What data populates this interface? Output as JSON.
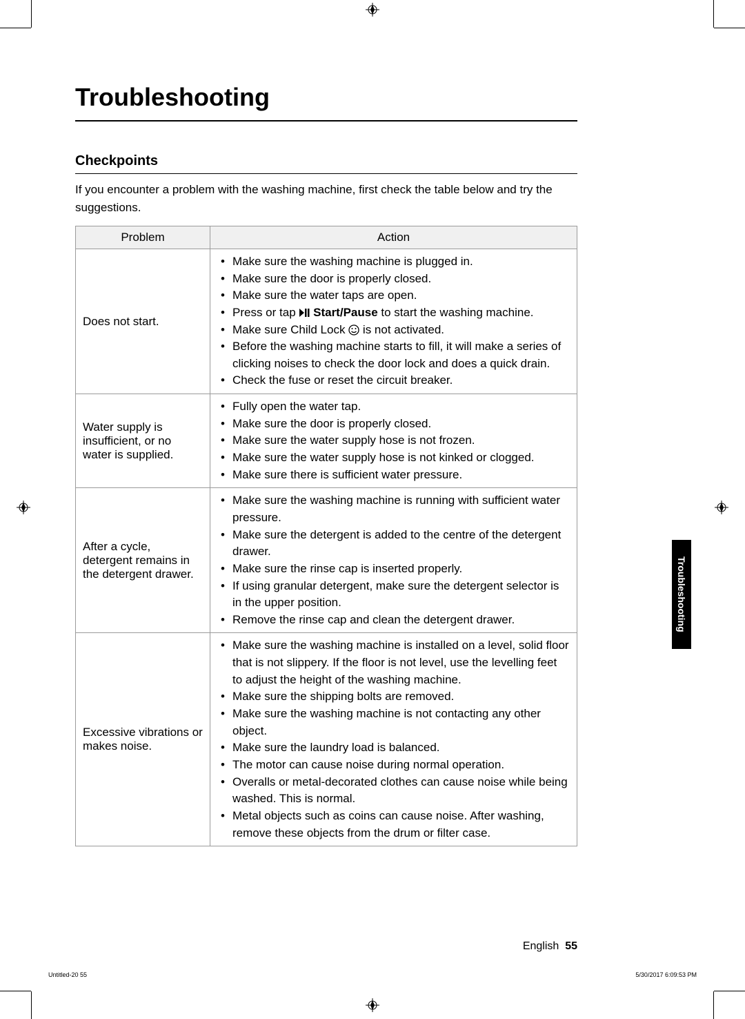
{
  "page": {
    "title": "Troubleshooting",
    "subtitle": "Checkpoints",
    "intro": "If you encounter a problem with the washing machine, first check the table below and try the suggestions.",
    "side_tab": "Troubleshooting",
    "language": "English",
    "page_number": "55"
  },
  "table": {
    "columns": [
      "Problem",
      "Action"
    ],
    "rows": [
      {
        "problem": "Does not start.",
        "actions": [
          "Make sure the washing machine is plugged in.",
          "Make sure the door is properly closed.",
          "Make sure the water taps are open.",
          "Press or tap ▷|| Start/Pause to start the washing machine.",
          "Make sure Child Lock 🔒 is not activated.",
          "Before the washing machine starts to fill, it will make a series of clicking noises to check the door lock and does a quick drain.",
          "Check the fuse or reset the circuit breaker."
        ]
      },
      {
        "problem": "Water supply is insufficient, or no water is supplied.",
        "actions": [
          "Fully open the water tap.",
          "Make sure the door is properly closed.",
          "Make sure the water supply hose is not frozen.",
          "Make sure the water supply hose is not kinked or clogged.",
          "Make sure there is sufficient water pressure."
        ]
      },
      {
        "problem": "After a cycle, detergent remains in the detergent drawer.",
        "actions": [
          "Make sure the washing machine is running with sufficient water pressure.",
          "Make sure the detergent is added to the centre of the detergent drawer.",
          "Make sure the rinse cap is inserted properly.",
          "If using granular detergent, make sure the detergent selector is in the upper position.",
          "Remove the rinse cap and clean the detergent drawer."
        ]
      },
      {
        "problem": "Excessive vibrations or makes noise.",
        "actions": [
          "Make sure the washing machine is installed on a level, solid floor that is not slippery. If the floor is not level, use the levelling feet to adjust the height of the washing machine.",
          "Make sure the shipping bolts are removed.",
          "Make sure the washing machine is not contacting any other object.",
          "Make sure the laundry load is balanced.",
          "The motor can cause noise during normal operation.",
          "Overalls or metal-decorated clothes can cause noise while being washed. This is normal.",
          "Metal objects such as coins can cause noise. After washing, remove these objects from the drum or filter case."
        ]
      }
    ]
  },
  "meta": {
    "left": "Untitled-20   55",
    "right": "5/30/2017   6:09:53 PM"
  },
  "style": {
    "bg": "#ffffff",
    "text": "#000000",
    "border": "#9a9a9a",
    "header_bg": "#f0f0f0"
  }
}
